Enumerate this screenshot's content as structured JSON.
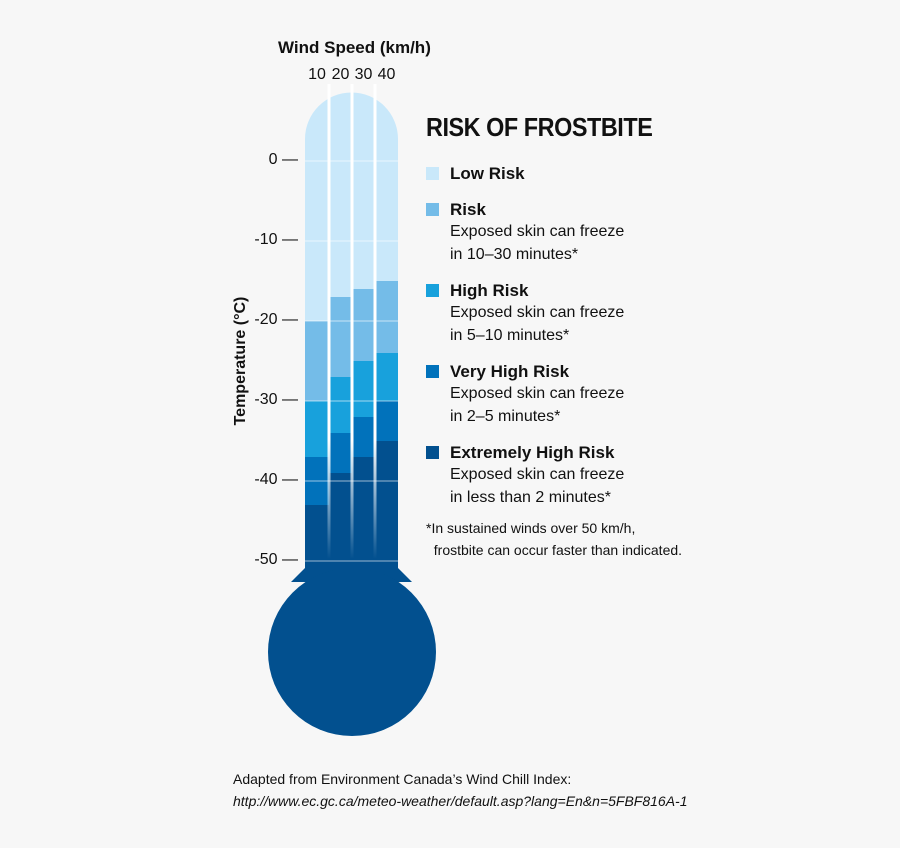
{
  "chart_data": {
    "type": "bar",
    "title": "RISK OF FROSTBITE",
    "xlabel": "Wind Speed (km/h)",
    "ylabel": "Temperature (°C)",
    "categories": [
      "10",
      "20",
      "30",
      "40"
    ],
    "yticks": [
      "0 —",
      "-10 —",
      "-20 —",
      "-30 —",
      "-40 —",
      "-50 —"
    ],
    "ytick_values": [
      0,
      -10,
      -20,
      -30,
      -40,
      -50
    ],
    "ylim": [
      9,
      -52
    ],
    "risk_thresholds_note": "Temperature at which each risk level begins, per wind speed column",
    "series": [
      {
        "name": "Low Risk",
        "color": "#c9e8fa",
        "starts": [
          9,
          9,
          9,
          9
        ]
      },
      {
        "name": "Risk",
        "color": "#74bce8",
        "starts": [
          -20,
          -17,
          -16,
          -15
        ]
      },
      {
        "name": "High Risk",
        "color": "#18a1dc",
        "starts": [
          -30,
          -27,
          -25,
          -24
        ]
      },
      {
        "name": "Very High Risk",
        "color": "#0172bb",
        "starts": [
          -37,
          -34,
          -32,
          -30
        ]
      },
      {
        "name": "Extremely High Risk",
        "color": "#02508f",
        "starts": [
          -43,
          -39,
          -37,
          -35
        ]
      }
    ]
  },
  "legend": [
    {
      "label": "Low Risk",
      "lines": []
    },
    {
      "label": "Risk",
      "lines": [
        "Exposed skin can freeze",
        "in 10–30 minutes*"
      ]
    },
    {
      "label": "High Risk",
      "lines": [
        "Exposed skin can freeze",
        "in 5–10 minutes*"
      ]
    },
    {
      "label": "Very High Risk",
      "lines": [
        "Exposed skin can freeze",
        "in 2–5 minutes*"
      ]
    },
    {
      "label": "Extremely High Risk",
      "lines": [
        "Exposed skin can freeze",
        "in less than 2 minutes*"
      ]
    }
  ],
  "footnote": "*In sustained winds over 50 km/h,\n  frostbite can occur faster than indicated.",
  "source": {
    "line1": "Adapted from Environment Canada’s Wind Chill Index:",
    "line2": "http://www.ec.gc.ca/meteo-weather/default.asp?lang=En&n=5FBF816A-1"
  },
  "background": "#f7f7f7"
}
